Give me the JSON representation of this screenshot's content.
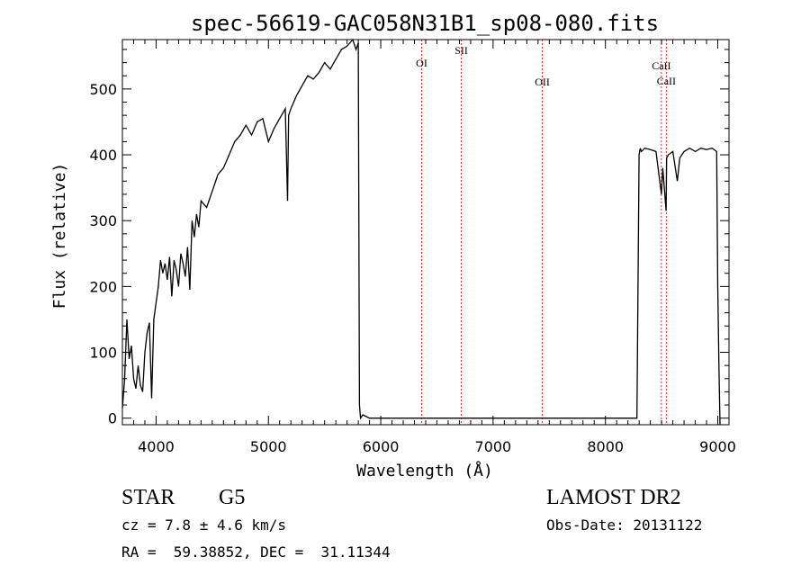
{
  "colors": {
    "spectrum": "#000000",
    "line_markers": "#c0392b",
    "axes": "#000000"
  },
  "chart_data": {
    "type": "line",
    "title": "spec-56619-GAC058N31B1_sp08-080.fits",
    "xlabel": "Wavelength (Å)",
    "ylabel": "Flux (relative)",
    "xlim": [
      3700,
      9100
    ],
    "ylim": [
      -10,
      575
    ],
    "x_ticks": [
      4000,
      5000,
      6000,
      7000,
      8000,
      9000
    ],
    "y_ticks": [
      0,
      100,
      200,
      300,
      400,
      500
    ],
    "grid": false,
    "series": [
      {
        "x": [
          3700,
          3720,
          3740,
          3760,
          3780,
          3800,
          3820,
          3840,
          3860,
          3880,
          3900,
          3920,
          3940,
          3960,
          3980,
          4000,
          4020,
          4040,
          4060,
          4080,
          4100,
          4120,
          4140,
          4160,
          4180,
          4200,
          4220,
          4240,
          4260,
          4280,
          4300,
          4320,
          4340,
          4360,
          4380,
          4400,
          4450,
          4500,
          4550,
          4600,
          4650,
          4700,
          4750,
          4800,
          4850,
          4900,
          4950,
          5000,
          5050,
          5100,
          5150,
          5170,
          5180,
          5200,
          5250,
          5300,
          5350,
          5400,
          5450,
          5500,
          5550,
          5600,
          5650,
          5700,
          5750,
          5780,
          5800,
          5810,
          5820,
          5840,
          5900,
          6000,
          6200,
          6500,
          6800,
          7000,
          7300,
          7600,
          7900,
          8200,
          8280,
          8300,
          8310,
          8320,
          8350,
          8400,
          8450,
          8498,
          8510,
          8540,
          8545,
          8560,
          8600,
          8640,
          8662,
          8680,
          8700,
          8750,
          8800,
          8850,
          8900,
          8950,
          8990,
          9000,
          9010,
          9020
        ],
        "y": [
          15,
          60,
          150,
          90,
          110,
          60,
          45,
          80,
          50,
          40,
          100,
          130,
          145,
          30,
          150,
          175,
          200,
          240,
          220,
          235,
          210,
          245,
          185,
          240,
          225,
          200,
          250,
          235,
          215,
          260,
          195,
          300,
          275,
          310,
          290,
          330,
          320,
          345,
          370,
          380,
          400,
          420,
          430,
          445,
          430,
          450,
          455,
          420,
          440,
          455,
          470,
          330,
          460,
          470,
          490,
          505,
          520,
          515,
          525,
          540,
          530,
          545,
          560,
          565,
          575,
          560,
          570,
          20,
          0,
          5,
          0,
          0,
          0,
          0,
          0,
          0,
          0,
          0,
          0,
          0,
          0,
          400,
          410,
          405,
          410,
          408,
          405,
          340,
          380,
          315,
          395,
          400,
          405,
          360,
          395,
          400,
          405,
          410,
          405,
          410,
          408,
          410,
          405,
          200,
          80,
          -10
        ]
      }
    ],
    "spectral_lines": [
      {
        "label": "OI",
        "wavelength": 6364
      },
      {
        "label": "SII",
        "wavelength": 6717
      },
      {
        "label": "OII",
        "wavelength": 7438
      },
      {
        "label": "CaII",
        "wavelength": 8498
      },
      {
        "label": "CaII",
        "wavelength": 8542
      }
    ]
  },
  "info": {
    "class_label": "STAR",
    "subclass": "G5",
    "survey": "LAMOST DR2",
    "redshift": "cz = 7.8 ± 4.6 km/s",
    "obs_date": "Obs-Date: 20131122",
    "coords": "RA =  59.38852, DEC =  31.11344"
  }
}
